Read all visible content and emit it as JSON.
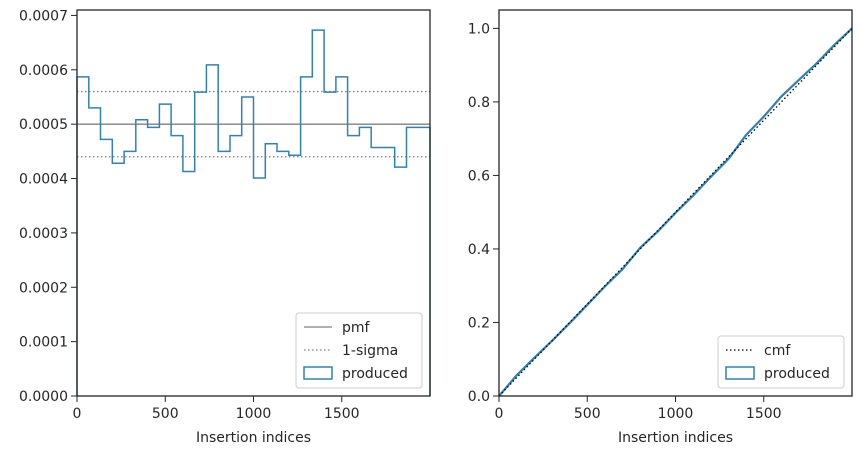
{
  "chart_data": [
    {
      "type": "step",
      "xlabel": "Insertion indices",
      "ylabel": "",
      "xlim": [
        0,
        2000
      ],
      "ylim": [
        0,
        0.00071
      ],
      "xticks": [
        0,
        500,
        1000,
        1500
      ],
      "yticks": [
        0.0,
        0.0001,
        0.0002,
        0.0003,
        0.0004,
        0.0005,
        0.0006,
        0.0007
      ],
      "ytick_labels": [
        "0.0000",
        "0.0001",
        "0.0002",
        "0.0003",
        "0.0004",
        "0.0005",
        "0.0006",
        "0.0007"
      ],
      "pmf": 0.0005,
      "sigma_band": [
        0.00044,
        0.00056
      ],
      "bin_edges": [
        0,
        67,
        133,
        200,
        267,
        333,
        400,
        467,
        533,
        600,
        667,
        733,
        800,
        867,
        933,
        1000,
        1067,
        1133,
        1200,
        1267,
        1333,
        1400,
        1467,
        1533,
        1600,
        1667,
        1733,
        1800,
        1867,
        1933,
        2000
      ],
      "produced": [
        0.000587,
        0.00053,
        0.000472,
        0.000428,
        0.00045,
        0.000508,
        0.000494,
        0.000537,
        0.000479,
        0.000413,
        0.000559,
        0.000609,
        0.00045,
        0.000479,
        0.00055,
        0.000401,
        0.000464,
        0.00045,
        0.000443,
        0.000587,
        0.000673,
        0.000559,
        0.000587,
        0.000479,
        0.000494,
        0.000457,
        0.000457,
        0.000421,
        0.000494,
        0.000494
      ],
      "legend": {
        "placement": "lower-right",
        "entries": [
          "pmf",
          "1-sigma",
          "produced"
        ]
      }
    },
    {
      "type": "line",
      "xlabel": "Insertion indices",
      "ylabel": "",
      "xlim": [
        0,
        2000
      ],
      "ylim": [
        0,
        1.05
      ],
      "xticks": [
        0,
        500,
        1000,
        1500
      ],
      "yticks": [
        0.0,
        0.2,
        0.4,
        0.6,
        0.8,
        1.0
      ],
      "ytick_labels": [
        "0.0",
        "0.2",
        "0.4",
        "0.6",
        "0.8",
        "1.0"
      ],
      "cmf": {
        "x": [
          0,
          2000
        ],
        "y": [
          0,
          1.0
        ]
      },
      "produced": {
        "x": [
          0,
          100,
          200,
          300,
          400,
          500,
          600,
          700,
          800,
          900,
          1000,
          1100,
          1200,
          1300,
          1400,
          1500,
          1600,
          1700,
          1800,
          1900,
          2000
        ],
        "y": [
          0.0,
          0.056,
          0.104,
          0.15,
          0.198,
          0.248,
          0.298,
          0.345,
          0.403,
          0.448,
          0.498,
          0.545,
          0.596,
          0.645,
          0.71,
          0.76,
          0.815,
          0.86,
          0.905,
          0.955,
          1.0
        ]
      },
      "legend": {
        "placement": "lower-right",
        "entries": [
          "cmf",
          "produced"
        ]
      }
    }
  ],
  "colors": {
    "produced": "#3182b0",
    "pmf": "#808080",
    "sigma": "#808080",
    "cmf": "#000000",
    "axes": "#262626"
  }
}
